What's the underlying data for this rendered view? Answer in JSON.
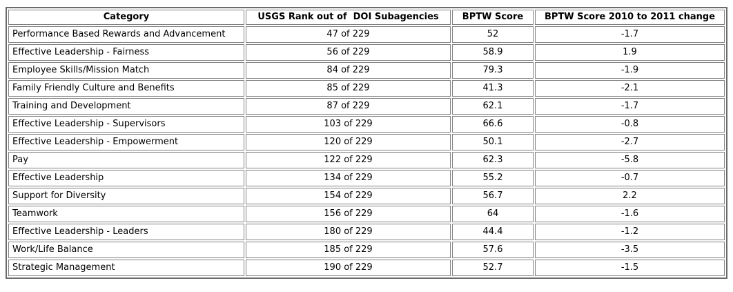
{
  "table": {
    "columns": [
      {
        "label": "Category",
        "align": "left"
      },
      {
        "label": "USGS Rank out of  DOI Subagencies",
        "align": "center"
      },
      {
        "label": "BPTW Score",
        "align": "center"
      },
      {
        "label": "BPTW Score 2010 to 2011 change",
        "align": "center"
      }
    ],
    "rows": [
      [
        "Performance Based Rewards and Advancement",
        "47 of 229",
        "52",
        "-1.7"
      ],
      [
        "Effective Leadership - Fairness",
        "56 of 229",
        "58.9",
        "1.9"
      ],
      [
        "Employee Skills/Mission Match",
        "84 of 229",
        "79.3",
        "-1.9"
      ],
      [
        "Family Friendly Culture and Benefits",
        "85 of 229",
        "41.3",
        "-2.1"
      ],
      [
        "Training and Development",
        "87 of 229",
        "62.1",
        "-1.7"
      ],
      [
        "Effective Leadership - Supervisors",
        "103 of 229",
        "66.6",
        "-0.8"
      ],
      [
        "Effective Leadership - Empowerment",
        "120 of 229",
        "50.1",
        "-2.7"
      ],
      [
        "Pay",
        "122 of 229",
        "62.3",
        "-5.8"
      ],
      [
        "Effective Leadership",
        "134 of 229",
        "55.2",
        "-0.7"
      ],
      [
        "Support for Diversity",
        "154 of 229",
        "56.7",
        "2.2"
      ],
      [
        "Teamwork",
        "156 of 229",
        "64",
        "-1.6"
      ],
      [
        "Effective Leadership - Leaders",
        "180 of 229",
        "44.4",
        "-1.2"
      ],
      [
        "Work/Life Balance",
        "185 of 229",
        "57.6",
        "-3.5"
      ],
      [
        "Strategic Management",
        "190 of 229",
        "52.7",
        "-1.5"
      ]
    ]
  },
  "chart_data": {
    "type": "table",
    "title": "",
    "columns": [
      "Category",
      "USGS Rank out of  DOI Subagencies",
      "BPTW Score",
      "BPTW Score 2010 to 2011 change"
    ],
    "categories": [
      "Performance Based Rewards and Advancement",
      "Effective Leadership - Fairness",
      "Employee Skills/Mission Match",
      "Family Friendly Culture and Benefits",
      "Training and Development",
      "Effective Leadership - Supervisors",
      "Effective Leadership - Empowerment",
      "Pay",
      "Effective Leadership",
      "Support for Diversity",
      "Teamwork",
      "Effective Leadership - Leaders",
      "Work/Life Balance",
      "Strategic Management"
    ],
    "series": [
      {
        "name": "USGS Rank out of 229 DOI Subagencies",
        "values": [
          47,
          56,
          84,
          85,
          87,
          103,
          120,
          122,
          134,
          154,
          156,
          180,
          185,
          190
        ]
      },
      {
        "name": "BPTW Score",
        "values": [
          52,
          58.9,
          79.3,
          41.3,
          62.1,
          66.6,
          50.1,
          62.3,
          55.2,
          56.7,
          64,
          44.4,
          57.6,
          52.7
        ]
      },
      {
        "name": "BPTW Score 2010 to 2011 change",
        "values": [
          -1.7,
          1.9,
          -1.9,
          -2.1,
          -1.7,
          -0.8,
          -2.7,
          -5.8,
          -0.7,
          2.2,
          -1.6,
          -1.2,
          -3.5,
          -1.5
        ]
      }
    ]
  },
  "colors": {
    "outer_border": "#6b6b6b",
    "cell_border": "#7f7f7f",
    "text": "#000000",
    "background": "#ffffff"
  }
}
